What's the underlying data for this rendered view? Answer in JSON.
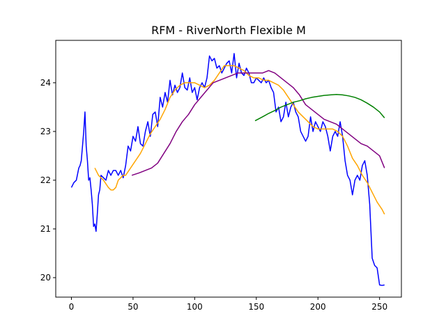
{
  "chart_data": {
    "type": "line",
    "title": "RFM - RiverNorth Flexible M",
    "xlabel": "",
    "ylabel": "",
    "xlim": [
      -12.7,
      267.7
    ],
    "ylim": [
      19.6,
      24.87
    ],
    "xticks": [
      0,
      50,
      100,
      150,
      200,
      250
    ],
    "yticks": [
      20,
      21,
      22,
      23,
      24
    ],
    "grid": false,
    "legend": "none",
    "series": [
      {
        "color": "#0000ff",
        "x": [
          0,
          2,
          4,
          6,
          7,
          8,
          9,
          10,
          11,
          12,
          13,
          14,
          15,
          16,
          17,
          18,
          19,
          20,
          21,
          22,
          23,
          24,
          26,
          28,
          30,
          32,
          34,
          36,
          38,
          40,
          42,
          44,
          46,
          48,
          50,
          52,
          54,
          56,
          58,
          60,
          62,
          64,
          66,
          68,
          70,
          72,
          74,
          76,
          78,
          80,
          82,
          84,
          86,
          88,
          90,
          92,
          94,
          96,
          98,
          100,
          102,
          104,
          106,
          108,
          110,
          112,
          114,
          116,
          118,
          120,
          122,
          124,
          126,
          128,
          130,
          132,
          134,
          136,
          138,
          140,
          142,
          144,
          146,
          148,
          150,
          152,
          154,
          156,
          158,
          160,
          162,
          164,
          166,
          168,
          170,
          172,
          174,
          176,
          178,
          180,
          182,
          184,
          186,
          188,
          190,
          192,
          194,
          196,
          198,
          200,
          202,
          204,
          206,
          208,
          210,
          212,
          214,
          216,
          218,
          220,
          222,
          224,
          226,
          228,
          230,
          232,
          234,
          236,
          238,
          240,
          242,
          244,
          246,
          248,
          250,
          252,
          254
        ],
        "y": [
          21.85,
          21.95,
          22.0,
          22.25,
          22.3,
          22.4,
          22.7,
          23.0,
          23.4,
          22.7,
          22.4,
          22.0,
          22.05,
          21.8,
          21.5,
          21.05,
          21.1,
          20.95,
          21.3,
          21.7,
          21.8,
          22.1,
          22.05,
          22.0,
          22.2,
          22.1,
          22.2,
          22.2,
          22.1,
          22.2,
          22.05,
          22.3,
          22.7,
          22.6,
          22.9,
          22.8,
          23.1,
          22.75,
          22.7,
          23.0,
          23.2,
          22.9,
          23.35,
          23.4,
          23.1,
          23.7,
          23.5,
          23.8,
          23.6,
          24.05,
          23.75,
          23.95,
          23.8,
          23.9,
          24.2,
          23.9,
          23.85,
          24.1,
          23.8,
          23.9,
          23.65,
          23.9,
          24.0,
          23.9,
          24.1,
          24.55,
          24.45,
          24.5,
          24.3,
          24.35,
          24.2,
          24.3,
          24.4,
          24.45,
          24.2,
          24.6,
          24.1,
          24.4,
          24.2,
          24.15,
          24.3,
          24.2,
          24.0,
          24.0,
          24.1,
          24.05,
          24.0,
          24.1,
          24.0,
          24.05,
          23.9,
          23.8,
          23.4,
          23.5,
          23.2,
          23.3,
          23.6,
          23.3,
          23.5,
          23.6,
          23.4,
          23.3,
          23.0,
          22.9,
          22.8,
          22.9,
          23.3,
          23.0,
          23.2,
          23.1,
          23.0,
          23.2,
          23.1,
          22.9,
          22.6,
          22.9,
          23.0,
          22.9,
          23.2,
          22.9,
          22.4,
          22.1,
          22.0,
          21.7,
          22.0,
          22.1,
          22.0,
          22.3,
          22.4,
          22.1,
          21.5,
          20.4,
          20.25,
          20.2,
          19.85,
          19.84,
          19.85
        ]
      },
      {
        "color": "#ffa500",
        "x": [
          19,
          22,
          26,
          30,
          32,
          34,
          36,
          38,
          40,
          42,
          44,
          48,
          52,
          56,
          60,
          64,
          68,
          72,
          76,
          80,
          84,
          88,
          92,
          96,
          100,
          104,
          108,
          112,
          116,
          120,
          124,
          128,
          132,
          136,
          140,
          144,
          148,
          152,
          156,
          160,
          164,
          168,
          172,
          176,
          180,
          184,
          188,
          192,
          196,
          200,
          204,
          208,
          212,
          216,
          220,
          224,
          228,
          232,
          236,
          240,
          244,
          248,
          252,
          254
        ],
        "y": [
          22.25,
          22.1,
          22.0,
          21.85,
          21.8,
          21.8,
          21.85,
          22.0,
          22.05,
          22.1,
          22.1,
          22.25,
          22.4,
          22.55,
          22.75,
          22.95,
          23.1,
          23.25,
          23.45,
          23.7,
          23.85,
          23.95,
          24.0,
          24.0,
          24.0,
          23.95,
          23.9,
          23.95,
          24.05,
          24.2,
          24.35,
          24.35,
          24.35,
          24.3,
          24.25,
          24.15,
          24.1,
          24.1,
          24.05,
          24.05,
          24.0,
          23.95,
          23.85,
          23.7,
          23.55,
          23.4,
          23.3,
          23.2,
          23.1,
          23.05,
          23.05,
          23.05,
          23.05,
          23.0,
          22.9,
          22.7,
          22.45,
          22.3,
          22.1,
          21.95,
          21.75,
          21.55,
          21.4,
          21.3
        ]
      },
      {
        "color": "#800080",
        "x": [
          49,
          55,
          60,
          65,
          70,
          75,
          80,
          85,
          90,
          95,
          100,
          105,
          110,
          115,
          120,
          125,
          130,
          135,
          140,
          145,
          150,
          155,
          160,
          165,
          170,
          175,
          180,
          185,
          190,
          195,
          200,
          205,
          210,
          215,
          220,
          225,
          230,
          235,
          240,
          245,
          250,
          254
        ],
        "y": [
          22.1,
          22.15,
          22.2,
          22.25,
          22.35,
          22.55,
          22.75,
          23.0,
          23.2,
          23.35,
          23.55,
          23.7,
          23.85,
          24.0,
          24.05,
          24.1,
          24.15,
          24.2,
          24.2,
          24.2,
          24.2,
          24.2,
          24.25,
          24.2,
          24.1,
          24.0,
          23.9,
          23.75,
          23.55,
          23.45,
          23.35,
          23.25,
          23.2,
          23.15,
          23.05,
          22.95,
          22.85,
          22.75,
          22.7,
          22.6,
          22.5,
          22.25
        ]
      },
      {
        "color": "#008000",
        "x": [
          149,
          155,
          160,
          165,
          170,
          175,
          180,
          185,
          190,
          195,
          200,
          205,
          210,
          215,
          220,
          225,
          230,
          235,
          240,
          245,
          250,
          254
        ],
        "y": [
          23.22,
          23.3,
          23.37,
          23.43,
          23.5,
          23.55,
          23.6,
          23.63,
          23.67,
          23.7,
          23.72,
          23.74,
          23.75,
          23.76,
          23.75,
          23.73,
          23.7,
          23.65,
          23.58,
          23.5,
          23.4,
          23.28
        ]
      }
    ]
  }
}
